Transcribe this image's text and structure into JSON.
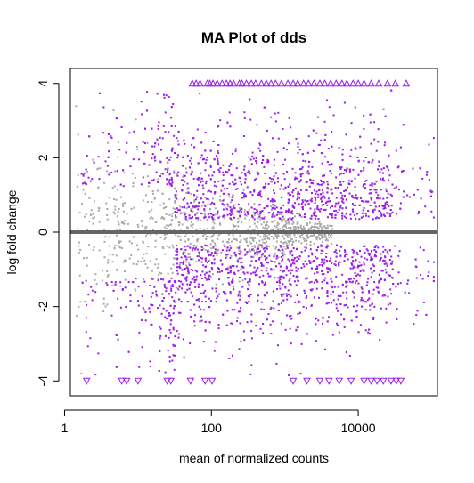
{
  "chart_data": {
    "type": "scatter",
    "title": "MA Plot of dds",
    "xlabel": "mean of normalized counts",
    "ylabel": "log fold change",
    "x_scale": "log10",
    "xlim": [
      1.2,
      120000
    ],
    "ylim": [
      -4.4,
      4.4
    ],
    "x_ticks": [
      {
        "value": 1,
        "label": "1"
      },
      {
        "value": 100,
        "label": "100"
      },
      {
        "value": 10000,
        "label": "10000"
      }
    ],
    "y_ticks": [
      {
        "value": -4,
        "label": "-4"
      },
      {
        "value": -2,
        "label": "-2"
      },
      {
        "value": 0,
        "label": "0"
      },
      {
        "value": 2,
        "label": "2"
      },
      {
        "value": 4,
        "label": "4"
      }
    ],
    "reference_line": {
      "y": 0,
      "color": "#666666"
    },
    "colors": {
      "significant": "#9a1de8",
      "not_significant": "#a8a8a8"
    },
    "out_of_range_marker": "triangle",
    "out_of_range_top_x": [
      55,
      62,
      70,
      88,
      95,
      105,
      120,
      140,
      160,
      180,
      200,
      240,
      260,
      300,
      350,
      400,
      480,
      560,
      650,
      750,
      900,
      1100,
      1300,
      1500,
      1800,
      2100,
      2500,
      3000,
      3500,
      4200,
      5000,
      6000,
      7000,
      8500,
      10000,
      12000,
      15000,
      19000,
      25000,
      32000,
      45000
    ],
    "out_of_range_bottom_x": [
      2,
      6,
      7,
      10,
      25,
      28,
      52,
      82,
      102,
      1300,
      2000,
      3000,
      4000,
      5500,
      8000,
      12000,
      15000,
      18000,
      22000,
      28000,
      33000,
      38000
    ],
    "points_generated": {
      "significant": 2600,
      "not_significant": 900
    }
  }
}
